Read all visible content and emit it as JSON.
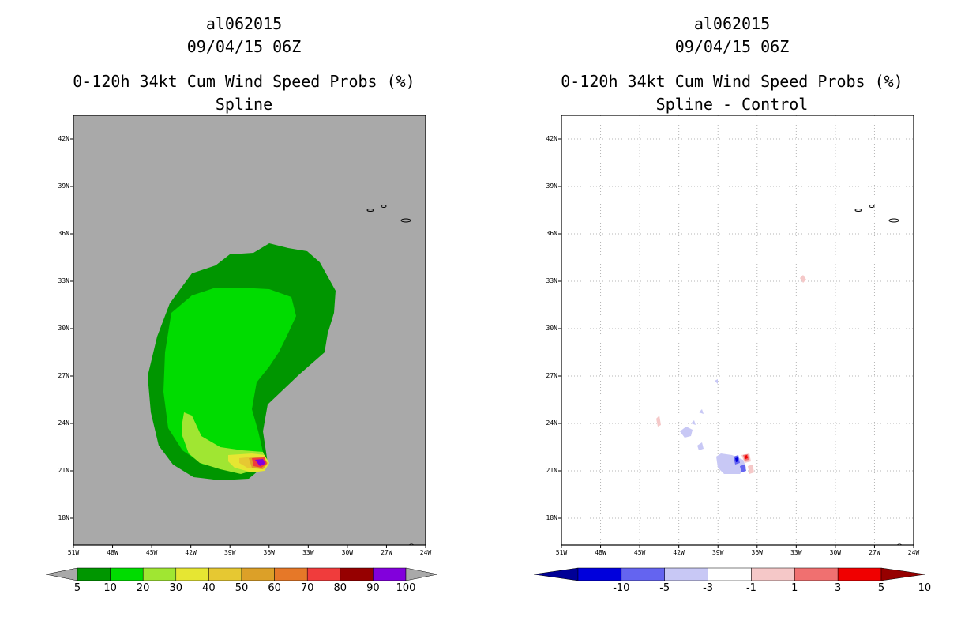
{
  "left": {
    "storm_id": "al062015",
    "datetime": "09/04/15 06Z",
    "product": "0-120h 34kt Cum Wind Speed Probs (%)",
    "subtitle": "Spline",
    "background_color": "#a9a9a9",
    "colorbar": {
      "colors": [
        "#009600",
        "#00dc00",
        "#a0e632",
        "#e6e632",
        "#e6c832",
        "#dca028",
        "#e67828",
        "#f03c3c",
        "#960000",
        "#8200dc"
      ],
      "labels": [
        "5",
        "10",
        "20",
        "30",
        "40",
        "50",
        "60",
        "70",
        "80",
        "90",
        "100"
      ]
    },
    "legend_colors": [
      {
        "value": "5",
        "color": "#009600"
      },
      {
        "value": "10",
        "color": "#00dc00"
      },
      {
        "value": "20",
        "color": "#a0e632"
      },
      {
        "value": "30",
        "color": "#e6e632"
      },
      {
        "value": "40",
        "color": "#e6c832"
      },
      {
        "value": "50",
        "color": "#dca028"
      },
      {
        "value": "60",
        "color": "#e67828"
      },
      {
        "value": "70",
        "color": "#f03c3c"
      },
      {
        "value": "80",
        "color": "#960000"
      },
      {
        "value": "90",
        "color": "#8200dc"
      }
    ]
  },
  "right": {
    "storm_id": "al062015",
    "datetime": "09/04/15 06Z",
    "product": "0-120h 34kt Cum Wind Speed Probs (%)",
    "subtitle": "Spline - Control",
    "background_color": "#ffffff",
    "colorbar": {
      "colors": [
        "#0000dc",
        "#6464f0",
        "#c8c8f5",
        "#ffffff",
        "#f5c8c8",
        "#f07070",
        "#f00000"
      ],
      "labels": [
        "-10",
        "-5",
        "-3",
        "-1",
        "1",
        "3",
        "5",
        "10"
      ],
      "end_low": "#000096",
      "end_high": "#960000"
    }
  },
  "axes": {
    "lat_labels": [
      "42N",
      "39N",
      "36N",
      "33N",
      "30N",
      "27N",
      "24N",
      "21N",
      "18N"
    ],
    "lon_labels": [
      "51W",
      "48W",
      "45W",
      "42W",
      "39W",
      "36W",
      "33W",
      "30W",
      "27W",
      "24W"
    ],
    "lat_range": [
      16.3,
      43.5
    ],
    "lon_range": [
      -51,
      -24
    ],
    "lat_values": [
      42,
      39,
      36,
      33,
      30,
      27,
      24,
      21,
      18
    ],
    "lon_values": [
      -51,
      -48,
      -45,
      -42,
      -39,
      -36,
      -33,
      -30,
      -27,
      -24
    ]
  }
}
